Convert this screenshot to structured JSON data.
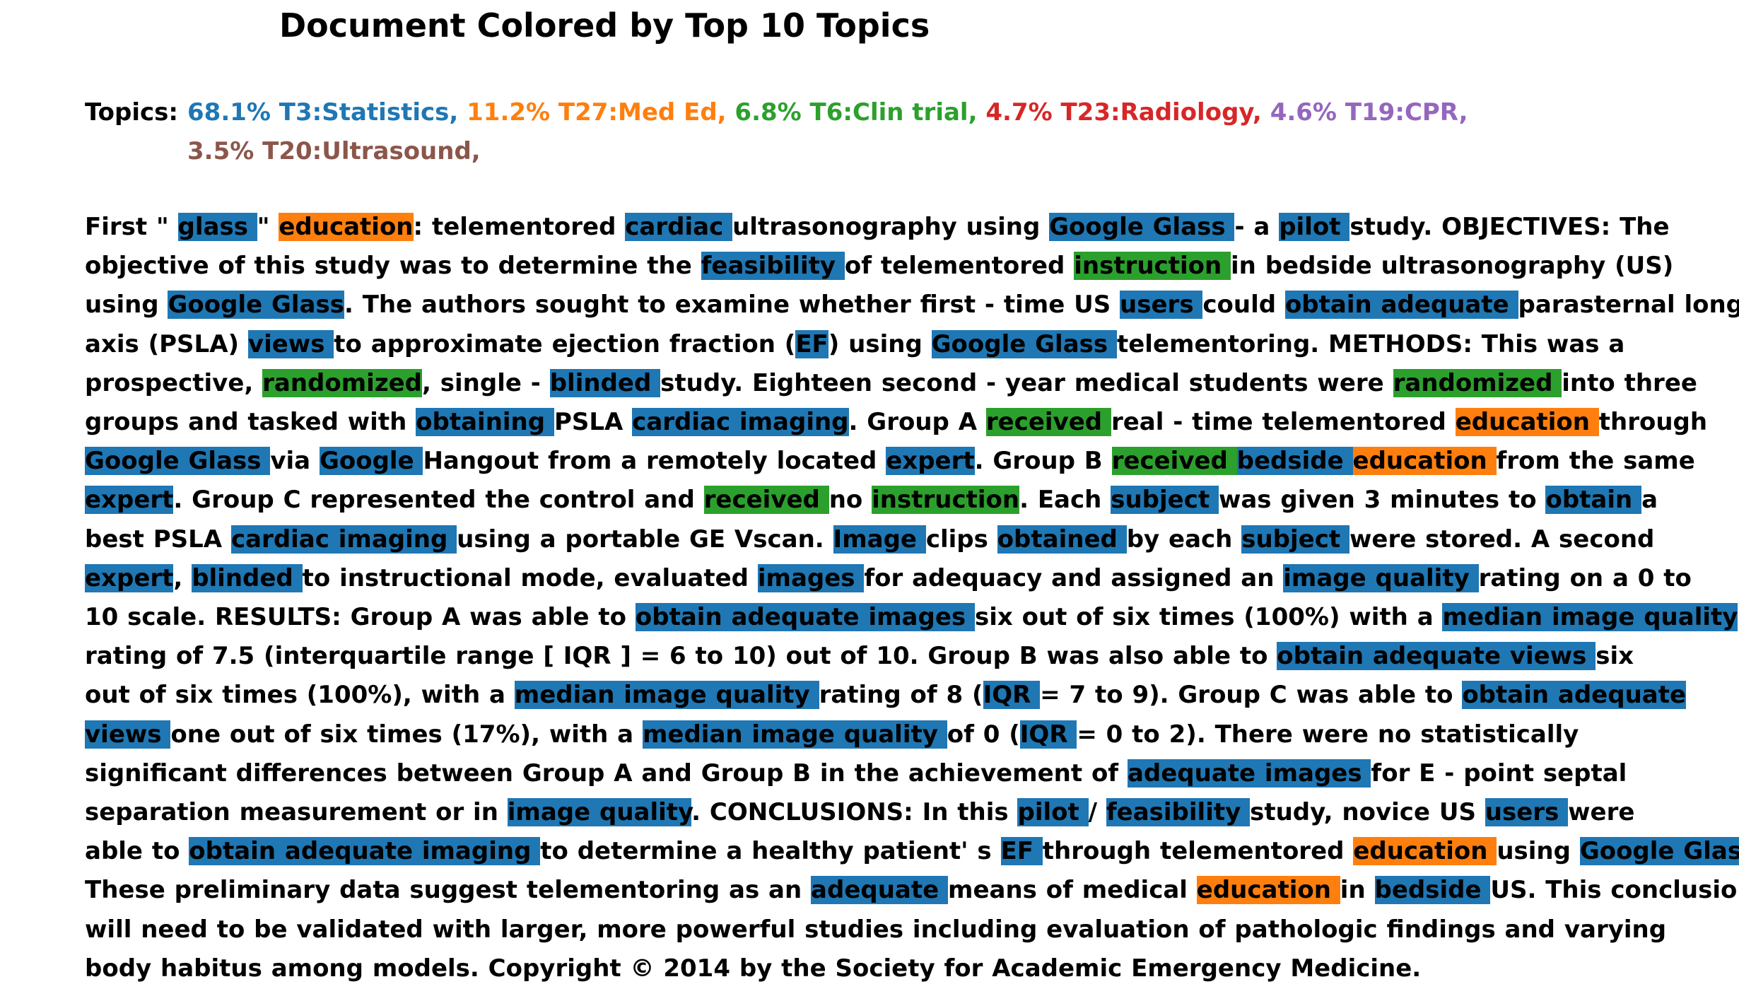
{
  "title": "Document Colored by Top 10 Topics",
  "colors": {
    "blue": "#1f77b4",
    "orange": "#ff7f0e",
    "green": "#2ca02c",
    "red": "#d62728",
    "purple": "#9467bd",
    "brown": "#8c564b"
  },
  "topics": {
    "label": "Topics:",
    "items": [
      {
        "text": "68.1% T3:Statistics,",
        "color": "#1f77b4"
      },
      {
        "text": "11.2% T27:Med Ed,",
        "color": "#ff7f0e"
      },
      {
        "text": "6.8% T6:Clin trial,",
        "color": "#2ca02c"
      },
      {
        "text": "4.7% T23:Radiology,",
        "color": "#d62728"
      },
      {
        "text": "4.6% T19:CPR,",
        "color": "#9467bd"
      },
      {
        "text": "3.5% T20:Ultrasound,",
        "color": "#8c564b"
      }
    ]
  },
  "lines": [
    [
      [
        "First \" ",
        null
      ],
      [
        "glass ",
        "blue"
      ],
      [
        "\" ",
        null
      ],
      [
        "education",
        "orange"
      ],
      [
        ": telementored ",
        null
      ],
      [
        "cardiac ",
        "blue"
      ],
      [
        "ultrasonography using ",
        null
      ],
      [
        "Google Glass ",
        "blue"
      ],
      [
        "- a ",
        null
      ],
      [
        "pilot ",
        "blue"
      ],
      [
        "study. OBJECTIVES: The",
        null
      ]
    ],
    [
      [
        "objective of this study was to determine the ",
        null
      ],
      [
        "feasibility ",
        "blue"
      ],
      [
        "of telementored ",
        null
      ],
      [
        "instruction ",
        "green"
      ],
      [
        "in bedside ultrasonography (US)",
        null
      ]
    ],
    [
      [
        "using ",
        null
      ],
      [
        "Google Glass",
        "blue"
      ],
      [
        ". The authors sought to examine whether first - time US ",
        null
      ],
      [
        "users ",
        "blue"
      ],
      [
        "could ",
        null
      ],
      [
        "obtain adequate ",
        "blue"
      ],
      [
        "parasternal long",
        null
      ]
    ],
    [
      [
        "axis (PSLA) ",
        null
      ],
      [
        "views ",
        "blue"
      ],
      [
        "to approximate ejection fraction (",
        null
      ],
      [
        "EF",
        "blue"
      ],
      [
        ") using ",
        null
      ],
      [
        "Google Glass ",
        "blue"
      ],
      [
        "telementoring. METHODS: This was a",
        null
      ]
    ],
    [
      [
        "prospective, ",
        null
      ],
      [
        "randomized",
        "green"
      ],
      [
        ", single - ",
        null
      ],
      [
        "blinded ",
        "blue"
      ],
      [
        "study. Eighteen second - year medical students were ",
        null
      ],
      [
        "randomized ",
        "green"
      ],
      [
        "into three",
        null
      ]
    ],
    [
      [
        "groups and tasked with ",
        null
      ],
      [
        "obtaining ",
        "blue"
      ],
      [
        "PSLA ",
        null
      ],
      [
        "cardiac imaging",
        "blue"
      ],
      [
        ". Group A ",
        null
      ],
      [
        "received ",
        "green"
      ],
      [
        "real - time telementored ",
        null
      ],
      [
        "education ",
        "orange"
      ],
      [
        "through",
        null
      ]
    ],
    [
      [
        "Google Glass ",
        "blue"
      ],
      [
        "via ",
        null
      ],
      [
        "Google ",
        "blue"
      ],
      [
        "Hangout from a remotely located ",
        null
      ],
      [
        "expert",
        "blue"
      ],
      [
        ". Group B ",
        null
      ],
      [
        "received ",
        "green"
      ],
      [
        "bedside ",
        "blue"
      ],
      [
        "education ",
        "orange"
      ],
      [
        "from the same",
        null
      ]
    ],
    [
      [
        "expert",
        "blue"
      ],
      [
        ". Group C represented the control and ",
        null
      ],
      [
        "received ",
        "green"
      ],
      [
        "no ",
        null
      ],
      [
        "instruction",
        "green"
      ],
      [
        ". Each ",
        null
      ],
      [
        "subject ",
        "blue"
      ],
      [
        "was given 3 minutes to ",
        null
      ],
      [
        "obtain ",
        "blue"
      ],
      [
        "a",
        null
      ]
    ],
    [
      [
        "best PSLA ",
        null
      ],
      [
        "cardiac imaging ",
        "blue"
      ],
      [
        "using a portable GE Vscan. ",
        null
      ],
      [
        "Image ",
        "blue"
      ],
      [
        "clips ",
        null
      ],
      [
        "obtained ",
        "blue"
      ],
      [
        "by each ",
        null
      ],
      [
        "subject ",
        "blue"
      ],
      [
        "were stored. A second",
        null
      ]
    ],
    [
      [
        "expert",
        "blue"
      ],
      [
        ", ",
        null
      ],
      [
        "blinded ",
        "blue"
      ],
      [
        "to instructional mode, evaluated ",
        null
      ],
      [
        "images ",
        "blue"
      ],
      [
        "for adequacy and assigned an ",
        null
      ],
      [
        "image quality ",
        "blue"
      ],
      [
        "rating on a 0 to",
        null
      ]
    ],
    [
      [
        "10 scale. RESULTS: Group A was able to ",
        null
      ],
      [
        "obtain adequate images ",
        "blue"
      ],
      [
        "six out of six times (100%) with a ",
        null
      ],
      [
        "median image quality ",
        "blue"
      ]
    ],
    [
      [
        "rating of 7.5 (interquartile range [ IQR ] = 6 to 10) out of 10. Group B was also able to ",
        null
      ],
      [
        "obtain adequate views ",
        "blue"
      ],
      [
        "six",
        null
      ]
    ],
    [
      [
        "out of six times (100%), with a ",
        null
      ],
      [
        "median image quality ",
        "blue"
      ],
      [
        "rating of 8 (",
        null
      ],
      [
        "IQR ",
        "blue"
      ],
      [
        "= 7 to 9). Group C was able to ",
        null
      ],
      [
        "obtain adequate ",
        "blue"
      ]
    ],
    [
      [
        "views ",
        "blue"
      ],
      [
        "one out of six times (17%), with a ",
        null
      ],
      [
        "median image quality ",
        "blue"
      ],
      [
        "of 0 (",
        null
      ],
      [
        "IQR ",
        "blue"
      ],
      [
        "= 0 to 2). There were no statistically",
        null
      ]
    ],
    [
      [
        "significant differences between Group A and Group B in the achievement of ",
        null
      ],
      [
        "adequate images ",
        "blue"
      ],
      [
        "for E - point septal",
        null
      ]
    ],
    [
      [
        "separation measurement or in ",
        null
      ],
      [
        "image quality",
        "blue"
      ],
      [
        ". CONCLUSIONS: In this ",
        null
      ],
      [
        "pilot ",
        "blue"
      ],
      [
        "/ ",
        null
      ],
      [
        "feasibility ",
        "blue"
      ],
      [
        "study, novice US ",
        null
      ],
      [
        "users ",
        "blue"
      ],
      [
        "were",
        null
      ]
    ],
    [
      [
        "able to ",
        null
      ],
      [
        "obtain adequate imaging ",
        "blue"
      ],
      [
        "to determine a healthy patient' s ",
        null
      ],
      [
        "EF ",
        "blue"
      ],
      [
        "through telementored ",
        null
      ],
      [
        "education ",
        "orange"
      ],
      [
        "using ",
        null
      ],
      [
        "Google Glass",
        "blue"
      ],
      [
        ".",
        null
      ]
    ],
    [
      [
        "These preliminary data suggest telementoring as an ",
        null
      ],
      [
        "adequate ",
        "blue"
      ],
      [
        "means of medical ",
        null
      ],
      [
        "education ",
        "orange"
      ],
      [
        "in ",
        null
      ],
      [
        "bedside ",
        "blue"
      ],
      [
        "US. This conclusion",
        null
      ]
    ],
    [
      [
        "will need to be validated with larger, more powerful studies including evaluation of pathologic findings and varying",
        null
      ]
    ],
    [
      [
        "body habitus among models. Copyright © 2014 by the Society for Academic Emergency Medicine.",
        null
      ]
    ]
  ]
}
